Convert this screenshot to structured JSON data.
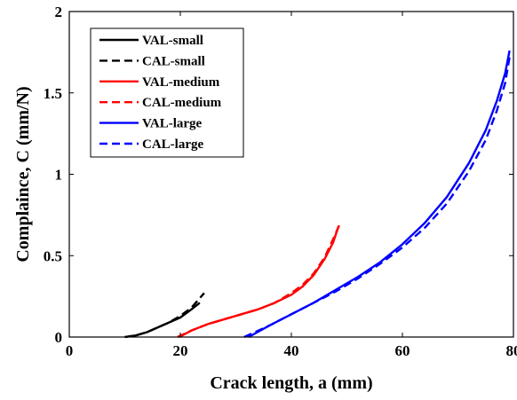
{
  "chart_data": {
    "type": "line",
    "title": "",
    "xlabel": "Crack length, a (mm)",
    "ylabel": "Complaince, C (mm/N)",
    "xlim": [
      0,
      80
    ],
    "ylim": [
      0,
      2
    ],
    "xticks": [
      0,
      20,
      40,
      60,
      80
    ],
    "yticks": [
      0,
      0.5,
      1,
      1.5,
      2
    ],
    "xtick_labels": [
      "0",
      "20",
      "40",
      "60",
      "80"
    ],
    "ytick_labels": [
      "0",
      "0.5",
      "1",
      "1.5",
      "2"
    ],
    "grid": false,
    "legend_position": "top-left",
    "series": [
      {
        "name": "VAL-small",
        "color": "#000000",
        "dash": "solid",
        "x": [
          10,
          12,
          14,
          16,
          18,
          20,
          22,
          23.5
        ],
        "y": [
          0.0,
          0.01,
          0.03,
          0.06,
          0.09,
          0.12,
          0.17,
          0.21
        ]
      },
      {
        "name": "CAL-small",
        "color": "#000000",
        "dash": "dashed",
        "x": [
          10,
          12,
          14,
          16,
          18,
          20,
          22,
          24.3
        ],
        "y": [
          0.0,
          0.01,
          0.03,
          0.06,
          0.09,
          0.13,
          0.18,
          0.27
        ]
      },
      {
        "name": "VAL-medium",
        "color": "#ff0000",
        "dash": "solid",
        "x": [
          19.8,
          22,
          25,
          28,
          31,
          34,
          37,
          40,
          42,
          44,
          46,
          47.5,
          48.5
        ],
        "y": [
          0.0,
          0.04,
          0.08,
          0.11,
          0.14,
          0.17,
          0.21,
          0.26,
          0.31,
          0.38,
          0.48,
          0.58,
          0.68
        ]
      },
      {
        "name": "CAL-medium",
        "color": "#ff0000",
        "dash": "dashed",
        "x": [
          19.5,
          22,
          25,
          28,
          31,
          34,
          37,
          40,
          42,
          44,
          46,
          47.5,
          48.8
        ],
        "y": [
          0.0,
          0.04,
          0.08,
          0.11,
          0.14,
          0.17,
          0.21,
          0.27,
          0.32,
          0.39,
          0.49,
          0.6,
          0.7
        ]
      },
      {
        "name": "VAL-large",
        "color": "#0000ff",
        "dash": "solid",
        "x": [
          32.3,
          36,
          40,
          44,
          48,
          52,
          56,
          60,
          64,
          68,
          72,
          75,
          77,
          78.5,
          79.3
        ],
        "y": [
          0.0,
          0.07,
          0.14,
          0.21,
          0.29,
          0.37,
          0.46,
          0.57,
          0.7,
          0.86,
          1.07,
          1.27,
          1.45,
          1.62,
          1.76
        ]
      },
      {
        "name": "CAL-large",
        "color": "#0000ff",
        "dash": "dashed",
        "x": [
          31.5,
          36,
          40,
          44,
          48,
          52,
          56,
          60,
          64,
          68,
          72,
          75,
          77,
          78.5,
          79.3
        ],
        "y": [
          0.0,
          0.07,
          0.14,
          0.21,
          0.28,
          0.36,
          0.45,
          0.55,
          0.67,
          0.82,
          1.02,
          1.21,
          1.39,
          1.56,
          1.72
        ]
      }
    ]
  }
}
